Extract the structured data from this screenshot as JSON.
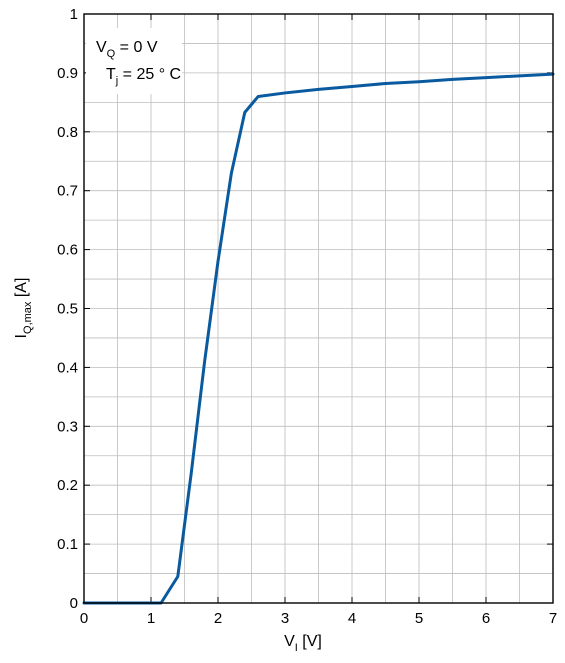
{
  "chart_data": {
    "type": "line",
    "xlabel": {
      "main": "V",
      "sub": "I",
      "unit": " [V]"
    },
    "ylabel": {
      "main": "I",
      "sub": "Q,max",
      "unit": " [A]"
    },
    "xlim": [
      0,
      7
    ],
    "ylim": [
      0,
      1
    ],
    "x_ticks": [
      "0",
      "1",
      "2",
      "3",
      "4",
      "5",
      "6",
      "7"
    ],
    "y_ticks": [
      "0",
      "0.1",
      "0.2",
      "0.3",
      "0.4",
      "0.5",
      "0.6",
      "0.7",
      "0.8",
      "0.9",
      "1"
    ],
    "grid": true,
    "annotation": {
      "line1": {
        "main": "V",
        "sub": "Q",
        "rest": " = 0 V"
      },
      "line2": {
        "main": "T",
        "sub": "j",
        "rest": " = 25 ° C"
      }
    },
    "series": [
      {
        "color": "#0a5aa0",
        "points": [
          [
            0,
            0
          ],
          [
            1.15,
            0
          ],
          [
            1.4,
            0.045
          ],
          [
            1.6,
            0.22
          ],
          [
            1.8,
            0.41
          ],
          [
            2.0,
            0.58
          ],
          [
            2.2,
            0.73
          ],
          [
            2.4,
            0.833
          ],
          [
            2.6,
            0.86
          ],
          [
            3.0,
            0.866
          ],
          [
            3.5,
            0.872
          ],
          [
            4.0,
            0.877
          ],
          [
            4.5,
            0.882
          ],
          [
            5.0,
            0.885
          ],
          [
            5.5,
            0.889
          ],
          [
            6.0,
            0.892
          ],
          [
            6.5,
            0.895
          ],
          [
            7.0,
            0.898
          ]
        ]
      }
    ]
  }
}
